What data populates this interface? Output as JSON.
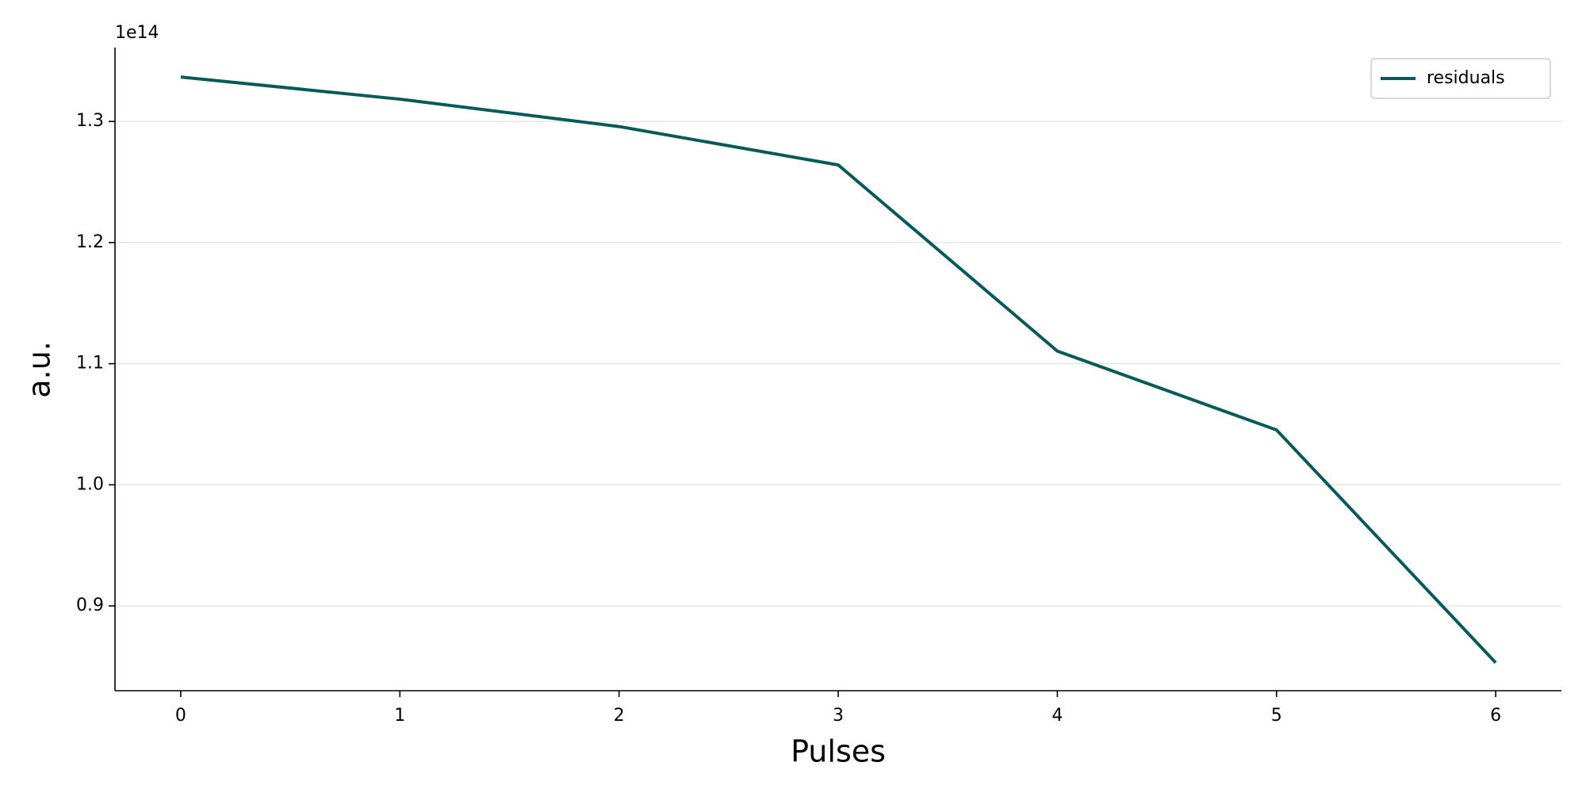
{
  "chart_data": {
    "type": "line",
    "x_label": "Pulses",
    "y_label": "a.u.",
    "y_offset_label": "1e14",
    "x": [
      0,
      1,
      2,
      3,
      4,
      5,
      6
    ],
    "series": [
      {
        "name": "residuals",
        "color": "#065a5a",
        "values": [
          1.3367,
          1.3184,
          1.2958,
          1.2641,
          1.1104,
          1.0453,
          0.8532
        ]
      }
    ],
    "xlim": [
      -0.3,
      6.3
    ],
    "xticks": [
      0,
      1,
      2,
      3,
      4,
      5,
      6
    ],
    "ylim": [
      0.83,
      1.361
    ],
    "yticks": [
      0.9,
      {
        "value": 1,
        "label": "1.0"
      },
      1.1,
      1.2,
      1.3
    ],
    "grid": "y",
    "legend": "upper right"
  }
}
